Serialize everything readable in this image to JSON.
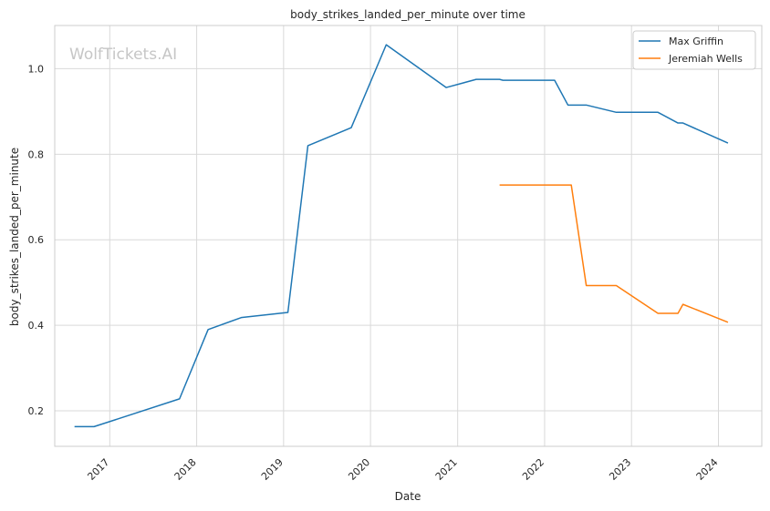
{
  "watermark": "WolfTickets.AI",
  "chart_data": {
    "type": "line",
    "title": "body_strikes_landed_per_minute over time",
    "xlabel": "Date",
    "ylabel": "body_strikes_landed_per_minute",
    "x_ticks": [
      "2017",
      "2018",
      "2019",
      "2020",
      "2021",
      "2022",
      "2023",
      "2024"
    ],
    "y_ticks": [
      "0.2",
      "0.4",
      "0.6",
      "0.8",
      "1.0"
    ],
    "xlim": [
      "2016-05-15",
      "2024-07-01"
    ],
    "ylim": [
      0.117,
      1.101
    ],
    "grid": true,
    "legend_position": "top-right",
    "series": [
      {
        "name": "Max Griffin",
        "color": "#1f77b4",
        "points": [
          [
            "2016-08-06",
            0.163
          ],
          [
            "2016-10-27",
            0.163
          ],
          [
            "2017-10-21",
            0.228
          ],
          [
            "2018-02-18",
            0.39
          ],
          [
            "2018-07-07",
            0.418
          ],
          [
            "2019-01-19",
            0.43
          ],
          [
            "2019-04-13",
            0.82
          ],
          [
            "2019-10-12",
            0.862
          ],
          [
            "2020-03-07",
            1.056
          ],
          [
            "2020-11-14",
            0.956
          ],
          [
            "2021-03-20",
            0.975
          ],
          [
            "2021-06-26",
            0.975
          ],
          [
            "2021-07-10",
            0.973
          ],
          [
            "2022-02-12",
            0.973
          ],
          [
            "2022-04-09",
            0.915
          ],
          [
            "2022-06-25",
            0.915
          ],
          [
            "2022-10-29",
            0.898
          ],
          [
            "2023-04-22",
            0.898
          ],
          [
            "2023-07-15",
            0.873
          ],
          [
            "2023-08-05",
            0.873
          ],
          [
            "2024-02-10",
            0.826
          ]
        ]
      },
      {
        "name": "Jeremiah Wells",
        "color": "#ff7f0e",
        "points": [
          [
            "2021-06-26",
            0.728
          ],
          [
            "2022-04-23",
            0.728
          ],
          [
            "2022-06-25",
            0.493
          ],
          [
            "2022-10-29",
            0.493
          ],
          [
            "2023-04-22",
            0.428
          ],
          [
            "2023-07-15",
            0.428
          ],
          [
            "2023-08-05",
            0.449
          ],
          [
            "2024-02-10",
            0.407
          ]
        ]
      }
    ]
  }
}
